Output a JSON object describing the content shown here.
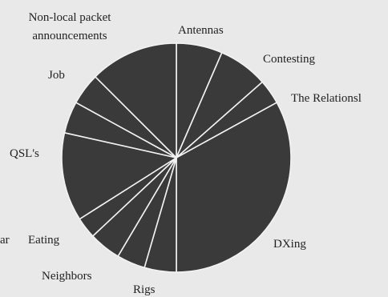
{
  "chart_data": {
    "type": "pie",
    "start_angle_deg": 0,
    "direction": "clockwise",
    "slice_color": "#3a3a3a",
    "separator_color": "#f2f2f2",
    "background_color": "#e9e9e9",
    "slices": [
      {
        "label": "Antennas",
        "value": 6.5
      },
      {
        "label": "Contesting",
        "value": 7.0
      },
      {
        "label": "The Relationsl",
        "value": 3.5
      },
      {
        "label": "DXing",
        "value": 33.0
      },
      {
        "label": "Rigs",
        "value": 4.5
      },
      {
        "label": "Neighbors",
        "value": 4.0
      },
      {
        "label": "Eating",
        "value": 4.5
      },
      {
        "label": "ar",
        "value": 3.0
      },
      {
        "label": "QSL's",
        "value": 12.5
      },
      {
        "label": "",
        "value": 4.5
      },
      {
        "label": "Job",
        "value": 4.5
      },
      {
        "label": "Non-local packet announcements",
        "value": 12.5
      }
    ]
  }
}
